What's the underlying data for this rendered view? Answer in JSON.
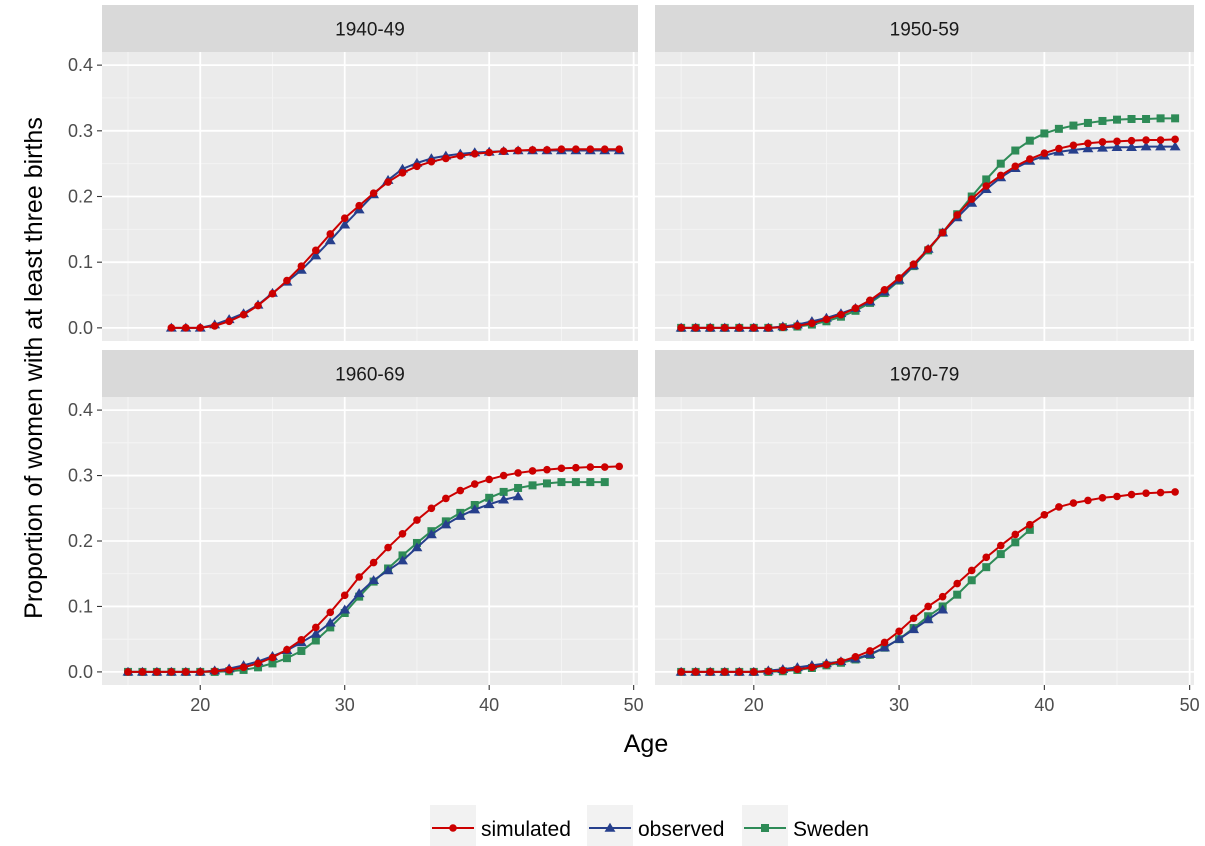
{
  "chart_data": {
    "type": "line",
    "xlabel": "Age",
    "ylabel": "Proportion of women with at least three births",
    "xlim": [
      13.2,
      50.3
    ],
    "ylim": [
      -0.02,
      0.42
    ],
    "x_ticks": [
      20,
      30,
      40,
      50
    ],
    "y_ticks": [
      0.0,
      0.1,
      0.2,
      0.3,
      0.4
    ],
    "y_tick_labels": [
      "0.0",
      "0.1",
      "0.2",
      "0.3",
      "0.4"
    ],
    "grid": true,
    "legend_position": "bottom",
    "series_styles": [
      {
        "name": "simulated",
        "color": "#cc0000",
        "marker": "circle"
      },
      {
        "name": "observed",
        "color": "#263f8c",
        "marker": "triangle"
      },
      {
        "name": "Sweden",
        "color": "#2e8b57",
        "marker": "square"
      }
    ],
    "panels": [
      {
        "title": "1940-49",
        "series": [
          {
            "name": "simulated",
            "x_start": 18,
            "y": [
              0.0,
              0.0,
              0.0,
              0.003,
              0.01,
              0.02,
              0.034,
              0.052,
              0.072,
              0.094,
              0.118,
              0.143,
              0.167,
              0.186,
              0.205,
              0.222,
              0.236,
              0.246,
              0.253,
              0.258,
              0.262,
              0.265,
              0.267,
              0.269,
              0.27,
              0.271,
              0.271,
              0.272,
              0.272,
              0.272,
              0.272,
              0.272
            ]
          },
          {
            "name": "observed",
            "x_start": 18,
            "y": [
              0.0,
              0.0,
              0.0,
              0.005,
              0.013,
              0.022,
              0.035,
              0.053,
              0.07,
              0.088,
              0.11,
              0.133,
              0.157,
              0.18,
              0.203,
              0.225,
              0.242,
              0.251,
              0.258,
              0.262,
              0.265,
              0.267,
              0.268,
              0.269,
              0.27,
              0.27,
              0.27,
              0.27,
              0.27,
              0.27,
              0.27,
              0.27
            ]
          },
          {
            "name": "Sweden",
            "x_start": 18,
            "y": []
          }
        ]
      },
      {
        "title": "1950-59",
        "series": [
          {
            "name": "simulated",
            "x_start": 15,
            "y": [
              0.0,
              0.0,
              0.0,
              0.0,
              0.0,
              0.0,
              0.0,
              0.001,
              0.003,
              0.007,
              0.013,
              0.02,
              0.03,
              0.042,
              0.058,
              0.076,
              0.097,
              0.12,
              0.145,
              0.172,
              0.196,
              0.216,
              0.232,
              0.246,
              0.257,
              0.266,
              0.273,
              0.278,
              0.281,
              0.283,
              0.284,
              0.285,
              0.286,
              0.286,
              0.287
            ]
          },
          {
            "name": "observed",
            "x_start": 15,
            "y": [
              0.0,
              0.0,
              0.0,
              0.0,
              0.0,
              0.0,
              0.0,
              0.002,
              0.005,
              0.01,
              0.015,
              0.022,
              0.03,
              0.04,
              0.055,
              0.073,
              0.095,
              0.12,
              0.145,
              0.168,
              0.19,
              0.211,
              0.229,
              0.243,
              0.254,
              0.262,
              0.268,
              0.271,
              0.273,
              0.274,
              0.275,
              0.275,
              0.276,
              0.276,
              0.276
            ]
          },
          {
            "name": "Sweden",
            "x_start": 15,
            "y": [
              0.0,
              0.0,
              0.0,
              0.0,
              0.0,
              0.0,
              0.0,
              0.001,
              0.002,
              0.005,
              0.01,
              0.017,
              0.026,
              0.038,
              0.053,
              0.072,
              0.094,
              0.118,
              0.145,
              0.173,
              0.2,
              0.226,
              0.25,
              0.27,
              0.285,
              0.296,
              0.303,
              0.308,
              0.312,
              0.315,
              0.317,
              0.318,
              0.318,
              0.319,
              0.319
            ]
          }
        ]
      },
      {
        "title": "1960-69",
        "series": [
          {
            "name": "simulated",
            "x_start": 15,
            "y": [
              0.0,
              0.0,
              0.0,
              0.0,
              0.0,
              0.0,
              0.001,
              0.003,
              0.007,
              0.013,
              0.022,
              0.034,
              0.049,
              0.068,
              0.091,
              0.117,
              0.145,
              0.167,
              0.19,
              0.211,
              0.232,
              0.25,
              0.265,
              0.277,
              0.287,
              0.294,
              0.3,
              0.304,
              0.307,
              0.309,
              0.311,
              0.312,
              0.313,
              0.313,
              0.314
            ]
          },
          {
            "name": "observed",
            "x_start": 15,
            "y": [
              0.0,
              0.0,
              0.0,
              0.0,
              0.0,
              0.0,
              0.002,
              0.005,
              0.01,
              0.016,
              0.024,
              0.033,
              0.045,
              0.058,
              0.075,
              0.095,
              0.12,
              0.14,
              0.155,
              0.17,
              0.19,
              0.21,
              0.225,
              0.238,
              0.248,
              0.256,
              0.263,
              0.268
            ]
          },
          {
            "name": "Sweden",
            "x_start": 15,
            "y": [
              0.0,
              0.0,
              0.0,
              0.0,
              0.0,
              0.0,
              0.0,
              0.001,
              0.003,
              0.007,
              0.013,
              0.021,
              0.032,
              0.048,
              0.068,
              0.09,
              0.115,
              0.138,
              0.158,
              0.178,
              0.197,
              0.215,
              0.23,
              0.243,
              0.255,
              0.266,
              0.275,
              0.281,
              0.285,
              0.288,
              0.29,
              0.29,
              0.29,
              0.29
            ]
          }
        ]
      },
      {
        "title": "1970-79",
        "series": [
          {
            "name": "simulated",
            "x_start": 15,
            "y": [
              0.0,
              0.0,
              0.0,
              0.0,
              0.0,
              0.0,
              0.001,
              0.002,
              0.004,
              0.007,
              0.011,
              0.016,
              0.023,
              0.032,
              0.045,
              0.062,
              0.082,
              0.1,
              0.115,
              0.135,
              0.155,
              0.175,
              0.193,
              0.21,
              0.225,
              0.24,
              0.252,
              0.258,
              0.262,
              0.266,
              0.268,
              0.271,
              0.273,
              0.274,
              0.275
            ]
          },
          {
            "name": "observed",
            "x_start": 15,
            "y": [
              0.0,
              0.0,
              0.0,
              0.0,
              0.0,
              0.0,
              0.002,
              0.004,
              0.007,
              0.01,
              0.013,
              0.016,
              0.02,
              0.027,
              0.037,
              0.05,
              0.065,
              0.08,
              0.095
            ]
          },
          {
            "name": "Sweden",
            "x_start": 15,
            "y": [
              0.0,
              0.0,
              0.0,
              0.0,
              0.0,
              0.0,
              0.0,
              0.001,
              0.003,
              0.006,
              0.01,
              0.014,
              0.019,
              0.026,
              0.037,
              0.05,
              0.067,
              0.085,
              0.1,
              0.118,
              0.14,
              0.16,
              0.18,
              0.198,
              0.217
            ]
          }
        ]
      }
    ]
  }
}
